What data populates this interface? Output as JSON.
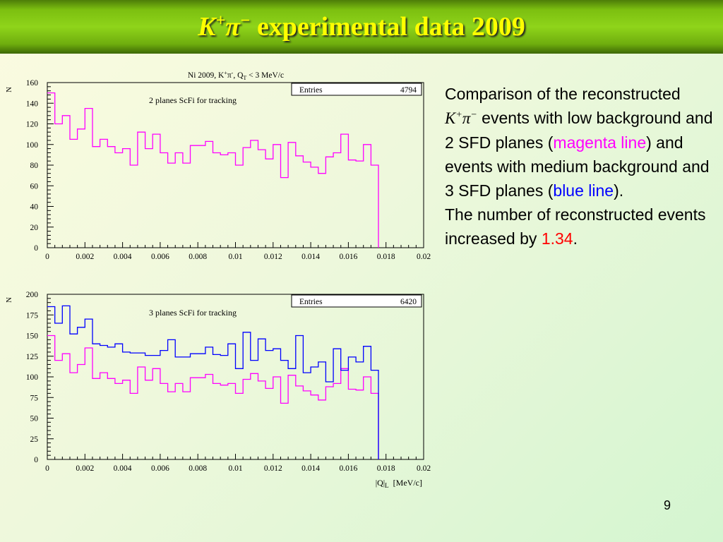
{
  "slide": {
    "title_k": "K",
    "title_kplus": "+",
    "title_pi": "π",
    "title_piminus": "−",
    "title_rest": " experimental data 2009",
    "page_number": "9",
    "colors": {
      "title_text": "#ffff00",
      "title_bar": "#7cbf10",
      "magenta": "#ff00ff",
      "blue": "#0000ff",
      "highlight_number": "#ff0000"
    }
  },
  "description": {
    "p1_a": "Comparison of the reconstructed ",
    "p1_k": "K",
    "p1_kplus": "+",
    "p1_pi": "π",
    "p1_piminus": "−",
    "p1_b": " events with low background and 2 SFD planes (",
    "p1_magenta": "magenta line",
    "p1_c": ") and events with medium background and 3 SFD planes (",
    "p1_blue": "blue line",
    "p1_d": ").",
    "p2_a": "The number of reconstructed events increased by ",
    "p2_num": "1.34",
    "p2_b": "."
  },
  "chart_data": [
    {
      "type": "histogram",
      "title": "Ni 2009, K+π-, QT < 3 MeV/c",
      "title_parts": {
        "a": "Ni 2009, K",
        "b": "+",
        "c": "π",
        "d": "-",
        "e": ", Q",
        "f": "T",
        "g": " < 3 MeV/c"
      },
      "annotation": "2 planes ScFi for tracking",
      "stats": {
        "label": "Entries",
        "value": "4794"
      },
      "ylabel": "N",
      "xlabel": "",
      "xlim": [
        0,
        0.02
      ],
      "ylim": [
        0,
        160
      ],
      "x_ticks": [
        "0",
        "0.002",
        "0.004",
        "0.006",
        "0.008",
        "0.01",
        "0.012",
        "0.014",
        "0.016",
        "0.018",
        "0.02"
      ],
      "y_ticks": [
        "0",
        "20",
        "40",
        "60",
        "80",
        "100",
        "120",
        "140",
        "160"
      ],
      "grid": false,
      "bin_width": 0.0004,
      "series": [
        {
          "color": "#ff00ff",
          "values": [
            150,
            120,
            128,
            105,
            115,
            135,
            98,
            105,
            98,
            92,
            96,
            80,
            112,
            96,
            110,
            92,
            82,
            92,
            82,
            99,
            99,
            103,
            92,
            90,
            92,
            80,
            97,
            104,
            95,
            86,
            100,
            68,
            102,
            89,
            83,
            78,
            72,
            88,
            92,
            110,
            85,
            84,
            100,
            80
          ]
        }
      ]
    },
    {
      "type": "histogram",
      "title": "",
      "annotation": "3 planes ScFi for tracking",
      "stats": {
        "label": "Entries",
        "value": "6420"
      },
      "ylabel": "N",
      "xlabel": "|Q|L  [MeV/c]",
      "xlabel_parts": {
        "a": "|Q|",
        "b": "L",
        "c": "  [MeV/c]"
      },
      "xlim": [
        0,
        0.02
      ],
      "ylim": [
        0,
        200
      ],
      "x_ticks": [
        "0",
        "0.002",
        "0.004",
        "0.006",
        "0.008",
        "0.01",
        "0.012",
        "0.014",
        "0.016",
        "0.018",
        "0.02"
      ],
      "y_ticks": [
        "0",
        "25",
        "50",
        "75",
        "100",
        "125",
        "150",
        "175",
        "200"
      ],
      "grid": false,
      "bin_width": 0.0004,
      "series": [
        {
          "color": "#ff00ff",
          "values": [
            150,
            120,
            128,
            105,
            115,
            135,
            98,
            105,
            98,
            92,
            96,
            80,
            112,
            96,
            110,
            92,
            82,
            92,
            82,
            99,
            99,
            103,
            92,
            90,
            92,
            80,
            97,
            104,
            95,
            86,
            100,
            68,
            102,
            89,
            83,
            78,
            72,
            88,
            92,
            110,
            85,
            84,
            100,
            80
          ]
        },
        {
          "color": "#0000ff",
          "values": [
            185,
            165,
            186,
            152,
            160,
            170,
            140,
            138,
            136,
            140,
            130,
            129,
            129,
            126,
            126,
            132,
            145,
            124,
            124,
            128,
            128,
            136,
            127,
            126,
            140,
            110,
            154,
            120,
            146,
            132,
            134,
            120,
            110,
            150,
            105,
            112,
            118,
            94,
            134,
            108,
            124,
            118,
            137,
            108
          ]
        }
      ]
    }
  ]
}
